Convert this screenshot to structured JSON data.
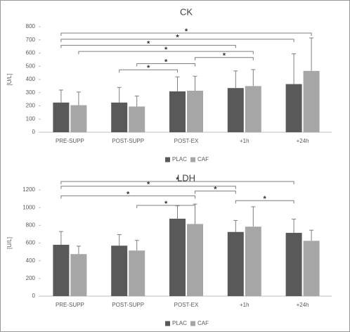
{
  "chart_data": [
    {
      "type": "bar",
      "title": "CK",
      "y_label": "[U/L]",
      "categories": [
        "PRE-SUPP",
        "POST-SUPP",
        "POST-EX",
        "+1h",
        "+24h"
      ],
      "series": [
        {
          "name": "PLAC",
          "color": "#595959",
          "values": [
            225,
            225,
            310,
            335,
            365
          ],
          "errors": [
            95,
            115,
            110,
            130,
            230
          ]
        },
        {
          "name": "CAF",
          "color": "#a6a6a6",
          "values": [
            205,
            195,
            315,
            350,
            465
          ],
          "errors": [
            100,
            80,
            110,
            125,
            250
          ]
        }
      ],
      "ylim": [
        0,
        800
      ],
      "yticks": [
        0,
        100,
        200,
        300,
        400,
        500,
        600,
        700,
        800
      ],
      "legend": "bottom",
      "annotations": [
        {
          "from": [
            0,
            0
          ],
          "to": [
            4,
            1
          ],
          "label": "*"
        },
        {
          "from": [
            0,
            0
          ],
          "to": [
            4,
            0
          ],
          "label": "*"
        },
        {
          "from": [
            0,
            0
          ],
          "to": [
            3,
            0
          ],
          "label": "*"
        },
        {
          "from": [
            0,
            1
          ],
          "to": [
            3,
            1
          ],
          "label": "*"
        },
        {
          "from": [
            2,
            1
          ],
          "to": [
            3,
            1
          ],
          "label": "*"
        },
        {
          "from": [
            1,
            1
          ],
          "to": [
            2,
            1
          ],
          "label": "*"
        },
        {
          "from": [
            1,
            0
          ],
          "to": [
            2,
            0
          ],
          "label": "*"
        }
      ]
    },
    {
      "type": "bar",
      "title": "LDH",
      "y_label": "[U/L]",
      "categories": [
        "PRE-SUPP",
        "POST-SUPP",
        "POST-EX",
        "+1h",
        "+24h"
      ],
      "series": [
        {
          "name": "PLAC",
          "color": "#595959",
          "values": [
            580,
            570,
            875,
            725,
            715
          ],
          "errors": [
            150,
            125,
            145,
            130,
            155
          ]
        },
        {
          "name": "CAF",
          "color": "#a6a6a6",
          "values": [
            475,
            515,
            815,
            785,
            625
          ],
          "errors": [
            90,
            115,
            225,
            225,
            120
          ]
        }
      ],
      "ylim": [
        0,
        1200
      ],
      "yticks": [
        0,
        200,
        400,
        600,
        800,
        1000,
        1200
      ],
      "legend": "bottom",
      "annotations": [
        {
          "from": [
            0,
            0
          ],
          "to": [
            4,
            0
          ],
          "label": "*"
        },
        {
          "from": [
            0,
            0
          ],
          "to": [
            3,
            0
          ],
          "label": "*"
        },
        {
          "from": [
            2,
            1
          ],
          "to": [
            3,
            0
          ],
          "label": "*"
        },
        {
          "from": [
            0,
            0
          ],
          "to": [
            2,
            1
          ],
          "label": "*"
        },
        {
          "from": [
            3,
            0
          ],
          "to": [
            4,
            0
          ],
          "label": "*"
        },
        {
          "from": [
            1,
            1
          ],
          "to": [
            2,
            1
          ],
          "label": "*"
        }
      ]
    }
  ]
}
